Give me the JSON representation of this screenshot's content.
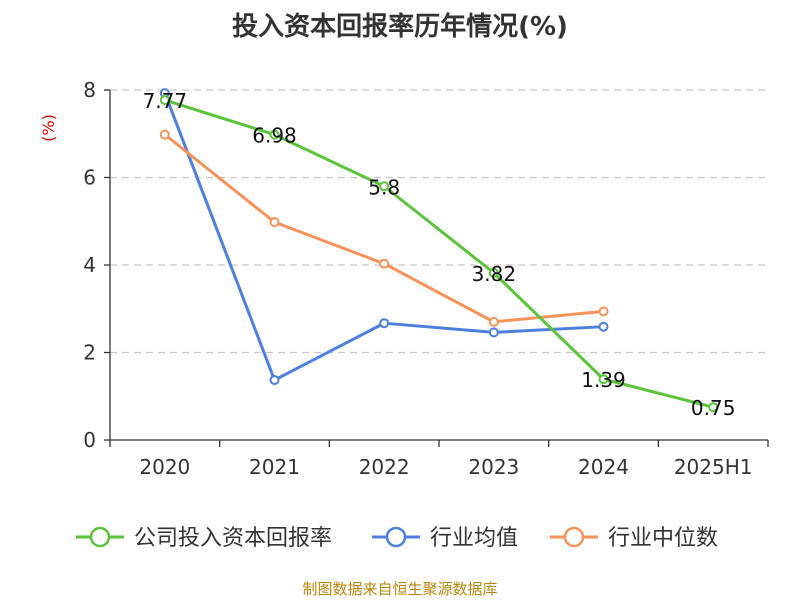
{
  "chart_data": {
    "type": "line",
    "title": "投入资本回报率历年情况(%)",
    "ylabel": "(%)",
    "categories": [
      "2020",
      "2021",
      "2022",
      "2023",
      "2024",
      "2025H1"
    ],
    "ylim": [
      0,
      8
    ],
    "yticks": [
      "0",
      "2",
      "4",
      "6",
      "8"
    ],
    "grid": "horizontal-dashed",
    "legend_position": "bottom",
    "series": [
      {
        "name": "公司投入资本回报率",
        "color": "#5bc43b",
        "values": [
          7.77,
          6.98,
          5.8,
          3.82,
          1.39,
          0.75
        ],
        "labels": [
          "7.77",
          "6.98",
          "5.8",
          "3.82",
          "1.39",
          "0.75"
        ]
      },
      {
        "name": "行业均值",
        "color": "#4e7fdc",
        "values": [
          7.93,
          1.37,
          2.67,
          2.46,
          2.59,
          null
        ]
      },
      {
        "name": "行业中位数",
        "color": "#f7925b",
        "values": [
          6.98,
          4.98,
          4.03,
          2.7,
          2.94,
          null
        ]
      }
    ]
  },
  "source_note": "制图数据来自恒生聚源数据库"
}
